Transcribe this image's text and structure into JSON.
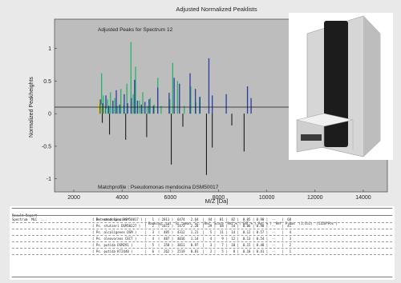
{
  "colors": {
    "figure_bg": "#e9e9e9",
    "axes_bg": "#bdbdbd",
    "instrument_body": "#d6d6d6",
    "instrument_stripe": "#1c1c1c",
    "series": [
      "#27b36a",
      "#2a3d9e",
      "#e3c72a",
      "#66c8e6",
      "#1a1a1a"
    ]
  },
  "instrument_photo": {
    "icon": "mass-spectrometer-instrument-icon"
  },
  "chart_data": {
    "type": "bar",
    "title": "Adjusted Normalized Peaklists",
    "subtitle": "Adjusted Peaks for Spectrum 12",
    "annotation": "Matchprofile : Pseudomonas mendocina DSM50017",
    "xlabel": "M/Z [Da]",
    "ylabel": "Normalized Peakheights",
    "xlim": [
      1200,
      15000
    ],
    "ylim": [
      -1.2,
      1.45
    ],
    "xticks": [
      2000,
      4000,
      6000,
      8000,
      10000,
      12000,
      14000
    ],
    "yticks": [
      -1,
      -0.5,
      0,
      0.5,
      1
    ],
    "ytick_labels": [
      "-1",
      "-0.5",
      "0",
      "0.5",
      "1"
    ],
    "grid": false,
    "legend": "none",
    "series": [
      {
        "x": [
          3060,
          3150,
          3220,
          3300,
          3400,
          3520,
          3600,
          3700,
          3810,
          3950,
          4070,
          4200,
          4370,
          4460,
          4560,
          4720,
          4860,
          5050,
          5170,
          5330,
          5480,
          5620,
          5980,
          6100,
          6300,
          6580,
          6850,
          7060,
          7210
        ],
        "values": [
          0.15,
          0.62,
          0.28,
          0.12,
          0.22,
          0.33,
          0.1,
          0.24,
          0.12,
          0.38,
          0.14,
          0.46,
          1.1,
          0.3,
          0.72,
          0.2,
          0.33,
          0.12,
          0.24,
          0.14,
          0.55,
          0.12,
          0.22,
          0.78,
          0.5,
          0.12,
          0.42,
          0.18,
          0.25
        ]
      },
      {
        "x": [
          3100,
          3200,
          3330,
          3450,
          3620,
          3760,
          3900,
          4090,
          4230,
          4380,
          4520,
          4640,
          4800,
          4950,
          5120,
          5300,
          5480,
          5950,
          6160,
          6380,
          6820,
          7040,
          7230,
          7600,
          7740,
          8320,
          9200,
          9350
        ],
        "values": [
          0.22,
          0.16,
          0.28,
          0.12,
          0.2,
          0.36,
          0.14,
          0.3,
          0.16,
          0.24,
          0.52,
          0.2,
          0.14,
          0.18,
          0.22,
          0.12,
          0.4,
          0.32,
          0.55,
          0.46,
          0.62,
          0.38,
          0.26,
          0.85,
          0.28,
          0.3,
          0.42,
          0.24
        ]
      },
      {
        "x": [
          3040,
          3130,
          3270
        ],
        "values": [
          0.2,
          0.14,
          0.1
        ]
      },
      {
        "x": [
          3350,
          3580
        ],
        "values": [
          0.08,
          0.1
        ]
      },
      {
        "x": [
          3180,
          3480,
          4150,
          5020,
          6040,
          6520,
          7500,
          7740,
          8550,
          9060
        ],
        "values": [
          -0.14,
          -0.32,
          -0.4,
          -0.36,
          -0.78,
          -0.2,
          -0.94,
          -0.52,
          -0.18,
          -0.58
        ]
      }
    ]
  },
  "report": {
    "header": [
      {
        "text": "Result Report",
        "col": 0
      },
      {
        "text": ": Detected Species",
        "col": 100
      },
      {
        "text": "| Ranking  cnt  St. mean  St. (Ref  Score  Ref % ( ENT % ) Ref % )  Ref  P-Max  (1.Cu1)  (1120?Pos )",
        "col": 165
      }
    ],
    "rows": [
      {
        "label": "Spectrum  MLC  ...",
        "species": "( Ps. mendocina DSM50017 )",
        "values": "|   1  ( 2811 )  6474   2.64  |  44 |  81 |  82 |  0.05 | 0.98 |  --   |  68"
      },
      {
        "label": "",
        "species": "( Ps. stutzeri DSM50227 )",
        "values": "|   2  ( 1872 )  5473   2.28  |  29 |  48 |  54 |  0.06 | 0.90 |  --   |  41"
      },
      {
        "label": "",
        "species": "( Ps. alcaligenes DSM )",
        "values": "|   3  (  485 )  4312   1.21  |   5 |  11 |  14 |  0.12 | 0.57 |  --   |   4"
      },
      {
        "label": "",
        "species": "( Ps. oleovorans CECT )",
        "values": "|   4  (  487 )  4016   1.14  |   4 |   9 |  12 |  0.13 | 0.54 |  --   |   3"
      },
      {
        "label": "",
        "species": "( Ps. putida DSM291 )",
        "values": "|   5  (  358 )  3011   0.97  |   3 |   7 |  10 |  0.15 | 0.48 |  --   |   2"
      },
      {
        "label": "",
        "species": "( Ps. putida KT2440 )",
        "values": "|   6  (  262 )  2519   0.81  |   2 |   5 |   8 |  0.18 | 0.41 |  --   |   1"
      }
    ]
  }
}
